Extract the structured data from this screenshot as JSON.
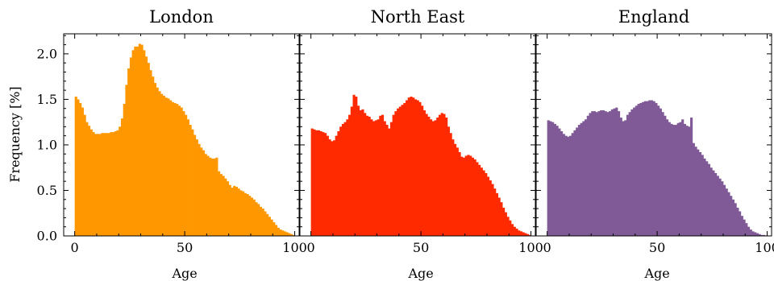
{
  "figure": {
    "ylabel": "Frequency [%]"
  },
  "chart_data": [
    {
      "type": "bar",
      "title": "London",
      "xlabel": "Age",
      "ylabel": "Frequency [%]",
      "xlim": [
        -5,
        102
      ],
      "ylim": [
        0,
        2.22
      ],
      "xticks": [
        0,
        50,
        100
      ],
      "yticks": [
        0.0,
        0.5,
        1.0,
        1.5,
        2.0
      ],
      "color": "#ff9800",
      "bin_start": 0,
      "bin_width": 1,
      "values": [
        1.53,
        1.5,
        1.46,
        1.41,
        1.33,
        1.25,
        1.21,
        1.17,
        1.14,
        1.12,
        1.12,
        1.12,
        1.13,
        1.13,
        1.13,
        1.13,
        1.14,
        1.14,
        1.15,
        1.16,
        1.2,
        1.29,
        1.45,
        1.66,
        1.84,
        1.96,
        2.04,
        2.08,
        2.08,
        2.11,
        2.1,
        2.04,
        1.97,
        1.9,
        1.82,
        1.75,
        1.68,
        1.63,
        1.59,
        1.56,
        1.54,
        1.52,
        1.51,
        1.49,
        1.47,
        1.46,
        1.45,
        1.43,
        1.41,
        1.37,
        1.33,
        1.28,
        1.22,
        1.17,
        1.11,
        1.06,
        1.01,
        0.97,
        0.94,
        0.9,
        0.88,
        0.86,
        0.85,
        0.85,
        0.86,
        0.71,
        0.68,
        0.66,
        0.63,
        0.6,
        0.56,
        0.53,
        0.55,
        0.54,
        0.52,
        0.5,
        0.49,
        0.47,
        0.46,
        0.44,
        0.42,
        0.4,
        0.37,
        0.35,
        0.32,
        0.3,
        0.27,
        0.24,
        0.21,
        0.18,
        0.15,
        0.12,
        0.09,
        0.07,
        0.06,
        0.05,
        0.04,
        0.03,
        0.02,
        0.01
      ]
    },
    {
      "type": "bar",
      "title": "North East",
      "xlabel": "Age",
      "xlim": [
        -5,
        102
      ],
      "ylim": [
        0,
        2.22
      ],
      "xticks": [
        0,
        50,
        100
      ],
      "yticks": [
        0.0,
        0.5,
        1.0,
        1.5,
        2.0
      ],
      "color": "#ff2a00",
      "bin_start": 0,
      "bin_width": 1,
      "values": [
        1.18,
        1.17,
        1.16,
        1.16,
        1.15,
        1.14,
        1.13,
        1.1,
        1.06,
        1.04,
        1.05,
        1.1,
        1.15,
        1.2,
        1.23,
        1.25,
        1.28,
        1.33,
        1.42,
        1.55,
        1.53,
        1.43,
        1.38,
        1.39,
        1.35,
        1.32,
        1.31,
        1.28,
        1.26,
        1.27,
        1.28,
        1.32,
        1.33,
        1.26,
        1.22,
        1.18,
        1.25,
        1.33,
        1.37,
        1.4,
        1.42,
        1.44,
        1.46,
        1.49,
        1.52,
        1.53,
        1.52,
        1.5,
        1.49,
        1.47,
        1.43,
        1.38,
        1.34,
        1.31,
        1.28,
        1.26,
        1.27,
        1.3,
        1.33,
        1.35,
        1.34,
        1.3,
        1.2,
        1.13,
        1.06,
        1.01,
        0.97,
        0.92,
        0.87,
        0.86,
        0.88,
        0.89,
        0.88,
        0.86,
        0.84,
        0.81,
        0.78,
        0.75,
        0.72,
        0.69,
        0.65,
        0.61,
        0.57,
        0.52,
        0.47,
        0.42,
        0.37,
        0.31,
        0.26,
        0.21,
        0.17,
        0.13,
        0.1,
        0.08,
        0.06,
        0.05,
        0.04,
        0.03,
        0.02,
        0.01
      ]
    },
    {
      "type": "bar",
      "title": "England",
      "xlabel": "Age",
      "xlim": [
        -5,
        102
      ],
      "ylim": [
        0,
        2.22
      ],
      "xticks": [
        0,
        50,
        100
      ],
      "yticks": [
        0.0,
        0.5,
        1.0,
        1.5,
        2.0
      ],
      "color": "#805a96",
      "bin_start": 0,
      "bin_width": 1,
      "values": [
        1.27,
        1.26,
        1.25,
        1.23,
        1.21,
        1.18,
        1.15,
        1.12,
        1.1,
        1.09,
        1.1,
        1.13,
        1.16,
        1.19,
        1.22,
        1.24,
        1.26,
        1.28,
        1.32,
        1.35,
        1.37,
        1.37,
        1.36,
        1.37,
        1.38,
        1.38,
        1.37,
        1.36,
        1.37,
        1.39,
        1.4,
        1.41,
        1.37,
        1.3,
        1.26,
        1.27,
        1.33,
        1.36,
        1.39,
        1.41,
        1.43,
        1.45,
        1.46,
        1.47,
        1.48,
        1.48,
        1.49,
        1.49,
        1.48,
        1.46,
        1.43,
        1.4,
        1.36,
        1.32,
        1.28,
        1.25,
        1.23,
        1.22,
        1.22,
        1.24,
        1.25,
        1.28,
        1.23,
        1.21,
        1.2,
        1.3,
        1.02,
        0.98,
        0.95,
        0.92,
        0.89,
        0.85,
        0.82,
        0.79,
        0.75,
        0.72,
        0.69,
        0.66,
        0.63,
        0.6,
        0.56,
        0.52,
        0.48,
        0.44,
        0.4,
        0.36,
        0.31,
        0.27,
        0.22,
        0.18,
        0.14,
        0.1,
        0.07,
        0.05,
        0.04,
        0.03,
        0.02,
        0.01,
        0.01,
        0.005
      ]
    }
  ]
}
